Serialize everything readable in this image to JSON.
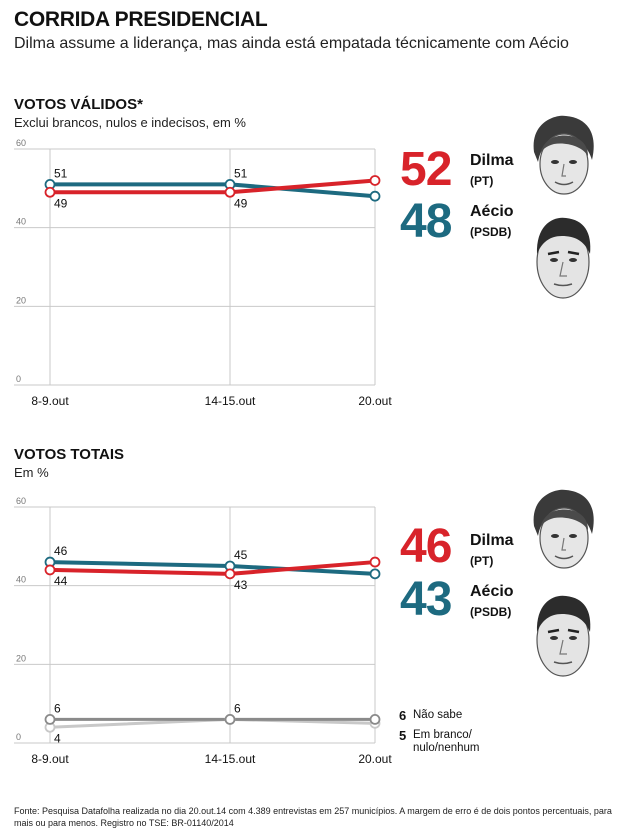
{
  "header": {
    "title": "CORRIDA PRESIDENCIAL",
    "subtitle": "Dilma assume a liderança, mas ainda está empatada técnicamente com Aécio"
  },
  "colors": {
    "dilma": "#d8232a",
    "aecio": "#1d6a80",
    "nao_sabe": "#8a8a8a",
    "branco": "#c8c8c8"
  },
  "chart_data": [
    {
      "type": "line",
      "title": "VOTOS VÁLIDOS*",
      "subtitle": "Exclui brancos, nulos e indecisos, em %",
      "x": [
        "8-9.out",
        "14-15.out",
        "20.out"
      ],
      "ylim": [
        0,
        60
      ],
      "yticks": [
        "0",
        "20",
        "40",
        "60"
      ],
      "series": [
        {
          "name": "Dilma",
          "key": "dilma",
          "values": [
            49,
            49,
            52
          ],
          "labels": [
            "49",
            "49",
            ""
          ]
        },
        {
          "name": "Aécio",
          "key": "aecio",
          "values": [
            51,
            51,
            48
          ],
          "labels": [
            "51",
            "51",
            ""
          ]
        }
      ],
      "legend": [
        {
          "key": "dilma",
          "value": "52",
          "name": "Dilma",
          "party": "(PT)"
        },
        {
          "key": "aecio",
          "value": "48",
          "name": "Aécio",
          "party": "(PSDB)"
        }
      ]
    },
    {
      "type": "line",
      "title": "VOTOS TOTAIS",
      "subtitle": "Em %",
      "x": [
        "8-9.out",
        "14-15.out",
        "20.out"
      ],
      "ylim": [
        0,
        60
      ],
      "yticks": [
        "0",
        "20",
        "40",
        "60"
      ],
      "series": [
        {
          "name": "Dilma",
          "key": "dilma",
          "values": [
            44,
            43,
            46
          ],
          "labels": [
            "44",
            "43",
            ""
          ]
        },
        {
          "name": "Aécio",
          "key": "aecio",
          "values": [
            46,
            45,
            43
          ],
          "labels": [
            "46",
            "45",
            ""
          ]
        },
        {
          "name": "Não sabe",
          "key": "nao_sabe",
          "values": [
            6,
            6,
            6
          ],
          "labels": [
            "6",
            "6",
            ""
          ]
        },
        {
          "name": "Em branco/nulo/nenhum",
          "key": "branco",
          "values": [
            4,
            6,
            5
          ],
          "labels": [
            "4",
            "",
            ""
          ]
        }
      ],
      "legend": [
        {
          "key": "dilma",
          "value": "46",
          "name": "Dilma",
          "party": "(PT)"
        },
        {
          "key": "aecio",
          "value": "43",
          "name": "Aécio",
          "party": "(PSDB)"
        }
      ],
      "minor_legend": [
        {
          "value": "6",
          "label": "Não sabe"
        },
        {
          "value": "5",
          "label": "Em branco/\nnulo/nenhum"
        }
      ]
    }
  ],
  "source": "Fonte: Pesquisa Datafolha realizada no dia 20.out.14 com 4.389 entrevistas em 257 municípios. A margem de erro é de dois pontos percentuais, para mais ou para menos. Registro no TSE: BR-01140/2014"
}
